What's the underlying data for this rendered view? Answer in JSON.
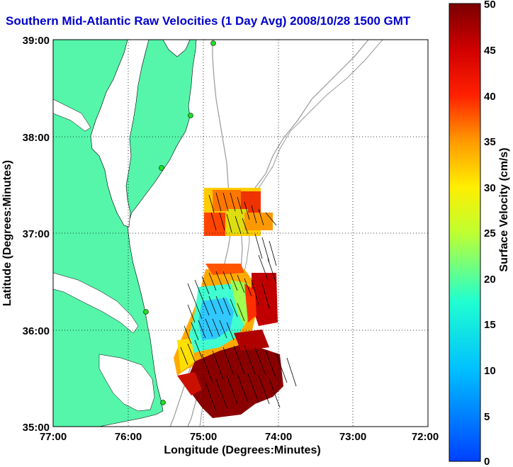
{
  "title": "Southern Mid-Atlantic Raw Velocities (1 Day Avg) 2008/10/28 1500 GMT",
  "map": {
    "xlabel": "Longitude (Degrees:Minutes)",
    "ylabel": "Latitude (Degrees:Minutes)",
    "x_ticks": [
      "77:00",
      "76:00",
      "75:00",
      "74:00",
      "73:00",
      "72:00"
    ],
    "y_ticks": [
      "39:00",
      "38:00",
      "37:00",
      "36:00",
      "35:00"
    ],
    "x_range": [
      -77,
      -72
    ],
    "y_range": [
      35,
      39
    ],
    "land_color": "#55f5aa",
    "grid": "dotted"
  },
  "colorbar": {
    "label": "Surface Velocity (cm/s)",
    "ticks": [
      "50",
      "45",
      "40",
      "35",
      "30",
      "25",
      "20",
      "15",
      "10",
      "5",
      "0"
    ],
    "range": [
      0,
      50
    ],
    "units": "cm/s"
  },
  "site_markers_color": "#22dd22"
}
